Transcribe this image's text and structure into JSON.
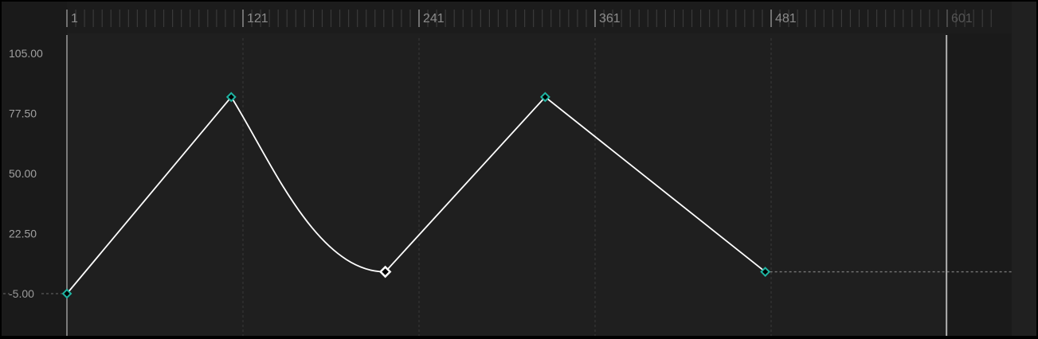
{
  "ruler": {
    "labels": [
      "1",
      "121",
      "241",
      "361",
      "481",
      "601"
    ],
    "frames": [
      1,
      121,
      241,
      361,
      481,
      601
    ],
    "minor_tick_every": 6
  },
  "value_axis": {
    "labels": [
      "105.00",
      "77.50",
      "50.00",
      "22.50",
      "-5.00"
    ],
    "values": [
      105,
      77.5,
      50,
      22.5,
      -5
    ],
    "highlighted": "-5.00"
  },
  "keyframes": [
    {
      "frame": 1,
      "value": -5,
      "selected": false
    },
    {
      "frame": 113,
      "value": 85,
      "selected": false
    },
    {
      "frame": 218,
      "value": 5,
      "selected": true
    },
    {
      "frame": 327,
      "value": 85,
      "selected": false
    },
    {
      "frame": 477,
      "value": 5,
      "selected": false
    }
  ],
  "segments": [
    "linear",
    "ease",
    "linear",
    "linear"
  ],
  "playhead_frame": 600,
  "end_frame": 601,
  "colors": {
    "keyframe": "#1fb5a3",
    "selected_keyframe": "#ffffff",
    "curve": "#ffffff",
    "background": "#1f1f1f",
    "label_panel": "#1a1a1a"
  }
}
